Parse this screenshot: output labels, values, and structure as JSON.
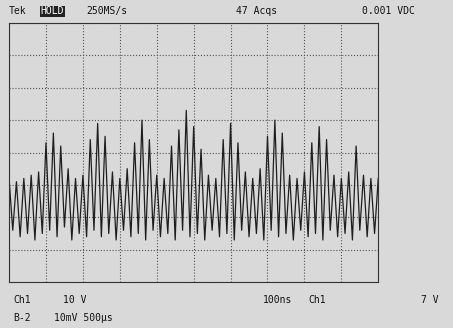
{
  "chart_data": {
    "type": "line",
    "annotations": [
      "Tek",
      "HOLD",
      "250MS/s",
      "47 Acqs",
      "0.001 VDC",
      "Ch1",
      "10 V",
      "B-2",
      "10mV 500μs",
      "100ns",
      "Ch1",
      "7 V"
    ],
    "x": [
      0,
      0.1,
      0.2,
      0.3,
      0.4,
      0.5,
      0.6,
      0.7,
      0.8,
      0.9,
      1.0,
      1.1,
      1.2,
      1.3,
      1.4,
      1.5,
      1.6,
      1.7,
      1.8,
      1.9,
      2.0,
      2.1,
      2.2,
      2.3,
      2.4,
      2.5,
      2.6,
      2.7,
      2.8,
      2.9,
      3.0,
      3.1,
      3.2,
      3.3,
      3.4,
      3.5,
      3.6,
      3.7,
      3.8,
      3.9,
      4.0,
      4.1,
      4.2,
      4.3,
      4.4,
      4.5,
      4.6,
      4.7,
      4.8,
      4.9,
      5.0,
      5.1,
      5.2,
      5.3,
      5.4,
      5.5,
      5.6,
      5.7,
      5.8,
      5.9,
      6.0,
      6.1,
      6.2,
      6.3,
      6.4,
      6.5,
      6.6,
      6.7,
      6.8,
      6.9,
      7.0,
      7.1,
      7.2,
      7.3,
      7.4,
      7.5,
      7.6,
      7.7,
      7.8,
      7.9,
      8.0,
      8.1,
      8.2,
      8.3,
      8.4,
      8.5,
      8.6,
      8.7,
      8.8,
      8.9,
      9.0,
      9.1,
      9.2,
      9.3,
      9.4,
      9.5,
      9.6,
      9.7,
      9.8,
      9.9,
      10.0
    ],
    "values": [
      -0.8,
      -2.4,
      -0.9,
      -2.6,
      -0.8,
      -2.5,
      -0.7,
      -2.7,
      -0.6,
      -2.5,
      0.3,
      -2.4,
      0.6,
      -2.6,
      0.2,
      -2.3,
      -0.5,
      -2.7,
      -0.8,
      -2.5,
      -0.7,
      -2.6,
      0.4,
      -2.4,
      0.9,
      -2.6,
      0.5,
      -2.5,
      -0.6,
      -2.7,
      -0.8,
      -2.4,
      -0.5,
      -2.6,
      0.3,
      -2.5,
      1.0,
      -2.7,
      0.4,
      -2.4,
      -0.7,
      -2.6,
      -0.8,
      -2.5,
      0.2,
      -2.7,
      0.7,
      -2.4,
      1.3,
      -2.6,
      0.8,
      -2.5,
      0.1,
      -2.7,
      -0.7,
      -2.4,
      -0.8,
      -2.6,
      0.4,
      -2.5,
      0.9,
      -2.7,
      0.3,
      -2.4,
      -0.6,
      -2.6,
      -0.8,
      -2.5,
      -0.5,
      -2.7,
      0.5,
      -2.4,
      1.0,
      -2.6,
      0.6,
      -2.5,
      -0.7,
      -2.7,
      -0.8,
      -2.4,
      -0.6,
      -2.6,
      0.3,
      -2.5,
      0.8,
      -2.7,
      0.4,
      -2.4,
      -0.7,
      -2.6,
      -0.8,
      -2.5,
      -0.6,
      -2.7,
      0.2,
      -2.4,
      -0.7,
      -2.6,
      -0.8,
      -2.5,
      -0.8
    ],
    "color": "#1e1e1e",
    "xlim": [
      0,
      10
    ],
    "ylim": [
      -4,
      4
    ],
    "xticks": [
      0,
      1,
      2,
      3,
      4,
      5,
      6,
      7,
      8,
      9,
      10
    ],
    "yticks": [
      -4,
      -3,
      -2,
      -1,
      0,
      1,
      2,
      3,
      4
    ],
    "grid": true,
    "tick_labels": false
  }
}
